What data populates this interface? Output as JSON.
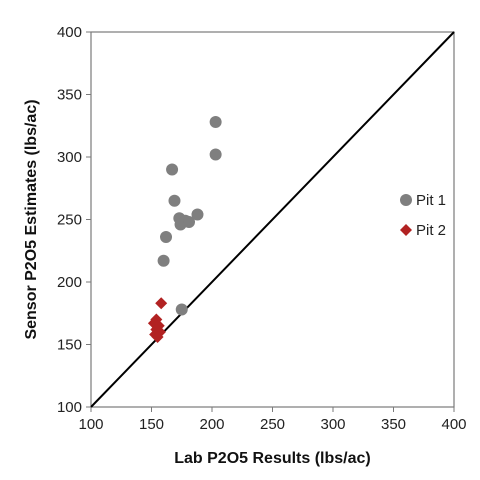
{
  "chart_data": {
    "type": "scatter",
    "title": "",
    "xlabel": "Lab P2O5 Results (lbs/ac)",
    "ylabel": "Sensor P2O5 Estimates (lbs/ac)",
    "xlim": [
      100,
      400
    ],
    "ylim": [
      100,
      400
    ],
    "xticks": [
      100,
      150,
      200,
      250,
      300,
      350,
      400
    ],
    "yticks": [
      100,
      150,
      200,
      250,
      300,
      350,
      400
    ],
    "grid": false,
    "legend_position": "right",
    "reference_line": {
      "type": "1:1",
      "from": [
        100,
        100
      ],
      "to": [
        400,
        400
      ],
      "color": "#000000"
    },
    "series": [
      {
        "name": "Pit 1",
        "marker": "circle",
        "color": "#7f7f7f",
        "points": [
          {
            "x": 203,
            "y": 328
          },
          {
            "x": 203,
            "y": 302
          },
          {
            "x": 167,
            "y": 290
          },
          {
            "x": 169,
            "y": 265
          },
          {
            "x": 173,
            "y": 251
          },
          {
            "x": 178,
            "y": 249
          },
          {
            "x": 174,
            "y": 246
          },
          {
            "x": 181,
            "y": 248
          },
          {
            "x": 188,
            "y": 254
          },
          {
            "x": 162,
            "y": 236
          },
          {
            "x": 160,
            "y": 217
          },
          {
            "x": 175,
            "y": 178
          }
        ]
      },
      {
        "name": "Pit 2",
        "marker": "diamond",
        "color": "#b22222",
        "points": [
          {
            "x": 158,
            "y": 183
          },
          {
            "x": 154,
            "y": 170
          },
          {
            "x": 152,
            "y": 167
          },
          {
            "x": 156,
            "y": 165
          },
          {
            "x": 154,
            "y": 162
          },
          {
            "x": 157,
            "y": 160
          },
          {
            "x": 153,
            "y": 158
          },
          {
            "x": 155,
            "y": 156
          }
        ]
      }
    ]
  }
}
